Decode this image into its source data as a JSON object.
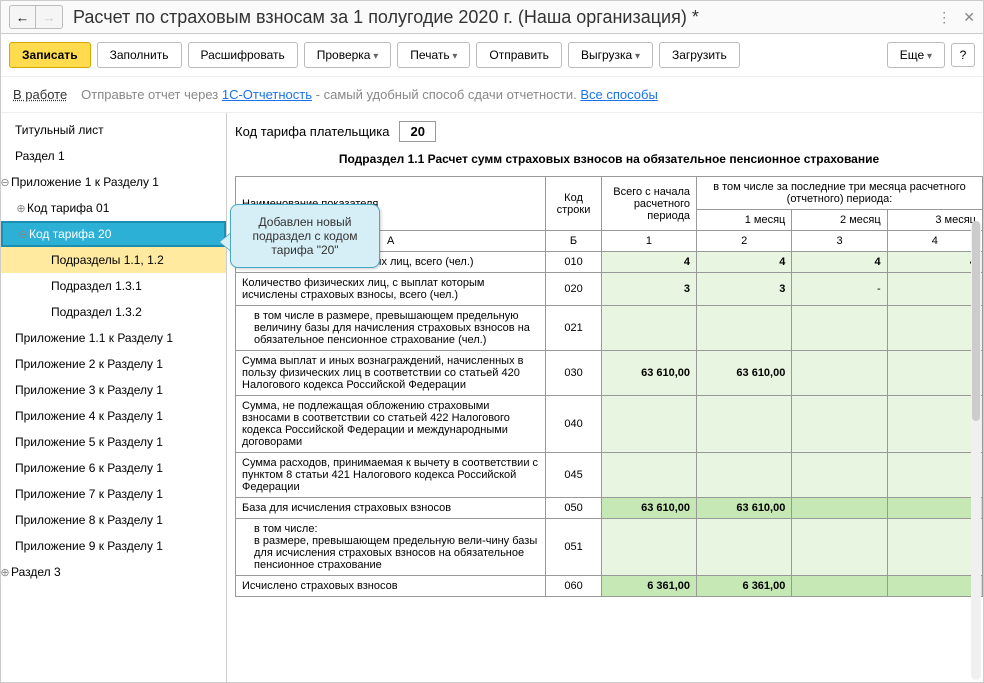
{
  "title": "Расчет по страховым взносам за 1 полугодие 2020 г. (Наша организация) *",
  "toolbar": {
    "save": "Записать",
    "fill": "Заполнить",
    "decode": "Расшифровать",
    "check": "Проверка",
    "print": "Печать",
    "send": "Отправить",
    "upload": "Выгрузка",
    "load": "Загрузить",
    "more": "Еще",
    "help": "?"
  },
  "info": {
    "status": "В работе",
    "text1": "Отправьте отчет через ",
    "link1": "1С-Отчетность",
    "text2": " - самый удобный способ сдачи отчетности. ",
    "link2": "Все способы"
  },
  "tree": [
    {
      "label": "Титульный лист",
      "level": 0
    },
    {
      "label": "Раздел 1",
      "level": 0
    },
    {
      "label": "Приложение 1 к Разделу 1",
      "level": 0,
      "toggle": "⊖"
    },
    {
      "label": "Код тарифа 01",
      "level": 1,
      "toggle": "⊕"
    },
    {
      "label": "Код тарифа 20",
      "level": 1,
      "toggle": "⊖",
      "selected": true
    },
    {
      "label": "Подразделы 1.1, 1.2",
      "level": 2,
      "highlight": true
    },
    {
      "label": "Подраздел 1.3.1",
      "level": 2
    },
    {
      "label": "Подраздел 1.3.2",
      "level": 2
    },
    {
      "label": "Приложение 1.1 к Разделу 1",
      "level": 0
    },
    {
      "label": "Приложение 2 к Разделу 1",
      "level": 0
    },
    {
      "label": "Приложение 3 к Разделу 1",
      "level": 0
    },
    {
      "label": "Приложение 4 к Разделу 1",
      "level": 0
    },
    {
      "label": "Приложение 5 к Разделу 1",
      "level": 0
    },
    {
      "label": "Приложение 6 к Разделу 1",
      "level": 0
    },
    {
      "label": "Приложение 7 к Разделу 1",
      "level": 0
    },
    {
      "label": "Приложение 8 к Разделу 1",
      "level": 0
    },
    {
      "label": "Приложение 9 к Разделу 1",
      "level": 0
    },
    {
      "label": "Раздел 3",
      "level": 0,
      "toggle": "⊕"
    }
  ],
  "tariff": {
    "label": "Код тарифа плательщика",
    "value": "20"
  },
  "section_title": "Подраздел 1.1 Расчет сумм страховых взносов на обязательное пенсионное страхование",
  "callout": "Добавлен новый подраздел с кодом тарифа \"20\"",
  "table": {
    "headers": {
      "name": "Наименование показателя",
      "code": "Код строки",
      "total": "Всего с начала расчетного периода",
      "group3": "в том числе за последние три месяца расчетного (отчетного) периода:",
      "m1": "1 месяц",
      "m2": "2 месяц",
      "m3": "3 месяц",
      "colA": "А",
      "colB": "Б",
      "c1": "1",
      "c2": "2",
      "c3": "3",
      "c4": "4"
    },
    "rows": [
      {
        "name": "Количество застрахованных лиц, всего (чел.)",
        "code": "010",
        "total": "4",
        "m1": "4",
        "m2": "4",
        "m3": "4",
        "green": true
      },
      {
        "name": "Количество физических лиц, с выплат которым исчислены страховых взносы, всего (чел.)",
        "code": "020",
        "total": "3",
        "m1": "3",
        "m2": "-",
        "m3": "-",
        "green": true
      },
      {
        "name": "в том числе в размере, превышающем предельную величину базы для начисления страховых взносов на обязательное пенсионное страхование (чел.)",
        "code": "021",
        "total": "",
        "m1": "",
        "m2": "",
        "m3": "",
        "green": true,
        "indent": true
      },
      {
        "name": "Сумма выплат и иных вознаграждений, начисленных в пользу физических лиц в соответствии со статьей 420 Налогового кодекса Российской Федерации",
        "code": "030",
        "total": "63 610,00",
        "m1": "63 610,00",
        "m2": "",
        "m3": "",
        "green": true
      },
      {
        "name": "Сумма, не подлежащая обложению страховыми взносами в соответствии со статьей 422 Налогового кодекса Российской Федерации и международными договорами",
        "code": "040",
        "total": "",
        "m1": "",
        "m2": "",
        "m3": "",
        "green": true
      },
      {
        "name": "Сумма расходов, принимаемая к вычету в соответствии с пунктом 8 статьи 421 Налогового кодекса Российской Федерации",
        "code": "045",
        "total": "",
        "m1": "",
        "m2": "",
        "m3": "",
        "green": true
      },
      {
        "name": "База для исчисления страховых взносов",
        "code": "050",
        "total": "63 610,00",
        "m1": "63 610,00",
        "m2": "",
        "m3": "",
        "deep": true
      },
      {
        "name": "в том числе:\nв размере, превышающем предельную вели-чину базы для исчисления страховых взносов на обязательное пенсионное страхование",
        "code": "051",
        "total": "",
        "m1": "",
        "m2": "",
        "m3": "",
        "green": true,
        "indent": true
      },
      {
        "name": "Исчислено страховых взносов",
        "code": "060",
        "total": "6 361,00",
        "m1": "6 361,00",
        "m2": "",
        "m3": "",
        "deep": true
      }
    ]
  },
  "colors": {
    "green": "#e8f5e0",
    "deep": "#c5e8b5"
  }
}
